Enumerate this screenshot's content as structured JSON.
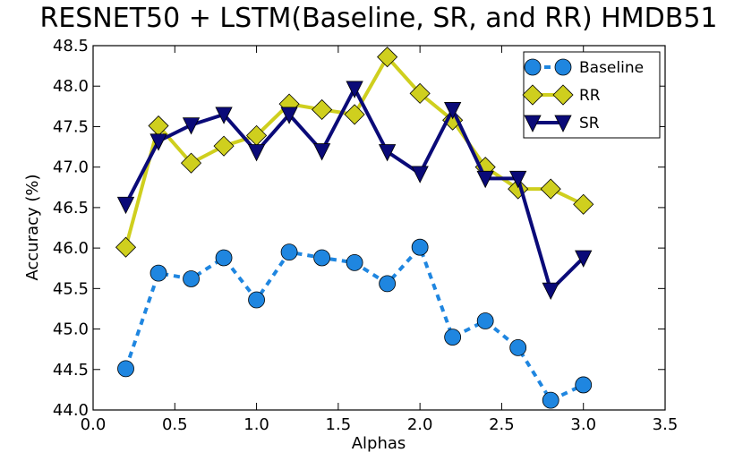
{
  "chart_data": {
    "type": "line",
    "title": "RESNET50 + LSTM(Baseline, SR, and RR) HMDB51",
    "xlabel": "Alphas",
    "ylabel": "Accuracy (%)",
    "xlim": [
      0.0,
      3.5
    ],
    "ylim": [
      44.0,
      48.5
    ],
    "xticks": [
      0.0,
      0.5,
      1.0,
      1.5,
      2.0,
      2.5,
      3.0,
      3.5
    ],
    "xtick_labels": [
      "0.0",
      "0.5",
      "1.0",
      "1.5",
      "2.0",
      "2.5",
      "3.0",
      "3.5"
    ],
    "yticks": [
      44.0,
      44.5,
      45.0,
      45.5,
      46.0,
      46.5,
      47.0,
      47.5,
      48.0,
      48.5
    ],
    "ytick_labels": [
      "44.0",
      "44.5",
      "45.0",
      "45.5",
      "46.0",
      "46.5",
      "47.0",
      "47.5",
      "48.0",
      "48.5"
    ],
    "grid": false,
    "legend_position": "top-right",
    "x": [
      0.2,
      0.4,
      0.6,
      0.8,
      1.0,
      1.2,
      1.4,
      1.6,
      1.8,
      2.0,
      2.2,
      2.4,
      2.6,
      2.8,
      3.0
    ],
    "series": [
      {
        "name": "Baseline",
        "values": [
          44.51,
          45.69,
          45.62,
          45.88,
          45.36,
          45.95,
          45.88,
          45.82,
          45.56,
          46.01,
          44.9,
          45.1,
          44.77,
          44.12,
          44.31
        ],
        "color": "#1f86e0",
        "marker": "circle",
        "linestyle": "dashed"
      },
      {
        "name": "RR",
        "values": [
          46.01,
          47.51,
          47.05,
          47.26,
          47.39,
          47.78,
          47.71,
          47.65,
          48.36,
          47.91,
          47.58,
          47.0,
          46.73,
          46.73,
          46.54
        ],
        "color": "#cfcf1e",
        "marker": "diamond",
        "linestyle": "solid"
      },
      {
        "name": "SR",
        "values": [
          46.54,
          47.32,
          47.52,
          47.65,
          47.19,
          47.65,
          47.2,
          47.97,
          47.19,
          46.92,
          47.71,
          46.86,
          46.86,
          45.48,
          45.88
        ],
        "color": "#0a0a78",
        "marker": "triangle-down",
        "linestyle": "solid"
      }
    ]
  }
}
